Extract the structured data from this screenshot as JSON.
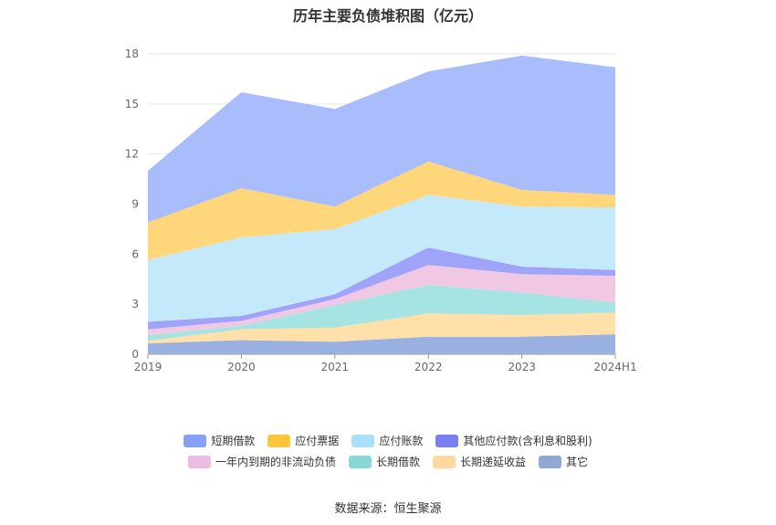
{
  "title": "历年主要负债堆积图（亿元）",
  "source": "数据来源：恒生聚源",
  "chart_data": {
    "type": "area",
    "stacked": true,
    "categories": [
      "2019",
      "2020",
      "2021",
      "2022",
      "2023",
      "2024H1"
    ],
    "ylim": [
      0,
      18
    ],
    "yticks": [
      0,
      3,
      6,
      9,
      12,
      15,
      18
    ],
    "grid": true,
    "legend_position": "bottom",
    "series": [
      {
        "name": "其它",
        "color": "#9ab0e0",
        "values": [
          0.65,
          0.85,
          0.75,
          1.05,
          1.05,
          1.2
        ]
      },
      {
        "name": "长期递延收益",
        "color": "#ffe0a8",
        "values": [
          0.15,
          0.65,
          0.85,
          1.4,
          1.3,
          1.3
        ]
      },
      {
        "name": "长期借款",
        "color": "#a6e3e3",
        "values": [
          0.35,
          0.2,
          1.35,
          1.7,
          1.35,
          0.6
        ]
      },
      {
        "name": "一年内到期的非流动负债",
        "color": "#f0c8e4",
        "values": [
          0.35,
          0.3,
          0.35,
          1.2,
          1.1,
          1.6
        ]
      },
      {
        "name": "其他应付款(含利息和股利)",
        "color": "#a0a4f8",
        "values": [
          0.45,
          0.3,
          0.3,
          1.05,
          0.45,
          0.35
        ]
      },
      {
        "name": "应付账款",
        "color": "#c4e9fb",
        "values": [
          3.7,
          4.7,
          3.9,
          3.15,
          3.6,
          3.75
        ]
      },
      {
        "name": "应付票据",
        "color": "#ffd77a",
        "values": [
          2.25,
          2.95,
          1.35,
          2.0,
          1.0,
          0.75
        ]
      },
      {
        "name": "短期借款",
        "color": "#a9bdfd",
        "values": [
          3.1,
          5.75,
          5.85,
          5.4,
          8.05,
          7.65
        ]
      }
    ]
  },
  "legend": {
    "row1": [
      {
        "label": "短期借款",
        "color": "#88a0f8"
      },
      {
        "label": "应付票据",
        "color": "#fcc53a"
      },
      {
        "label": "应付账款",
        "color": "#a8e0fa"
      },
      {
        "label": "其他应付款(含利息和股利)",
        "color": "#7a7ef2"
      }
    ],
    "row2": [
      {
        "label": "一年内到期的非流动负债",
        "color": "#ebbbe0"
      },
      {
        "label": "长期借款",
        "color": "#88d8d8"
      },
      {
        "label": "长期递延收益",
        "color": "#ffd8a0"
      },
      {
        "label": "其它",
        "color": "#8fa8d8"
      }
    ]
  }
}
